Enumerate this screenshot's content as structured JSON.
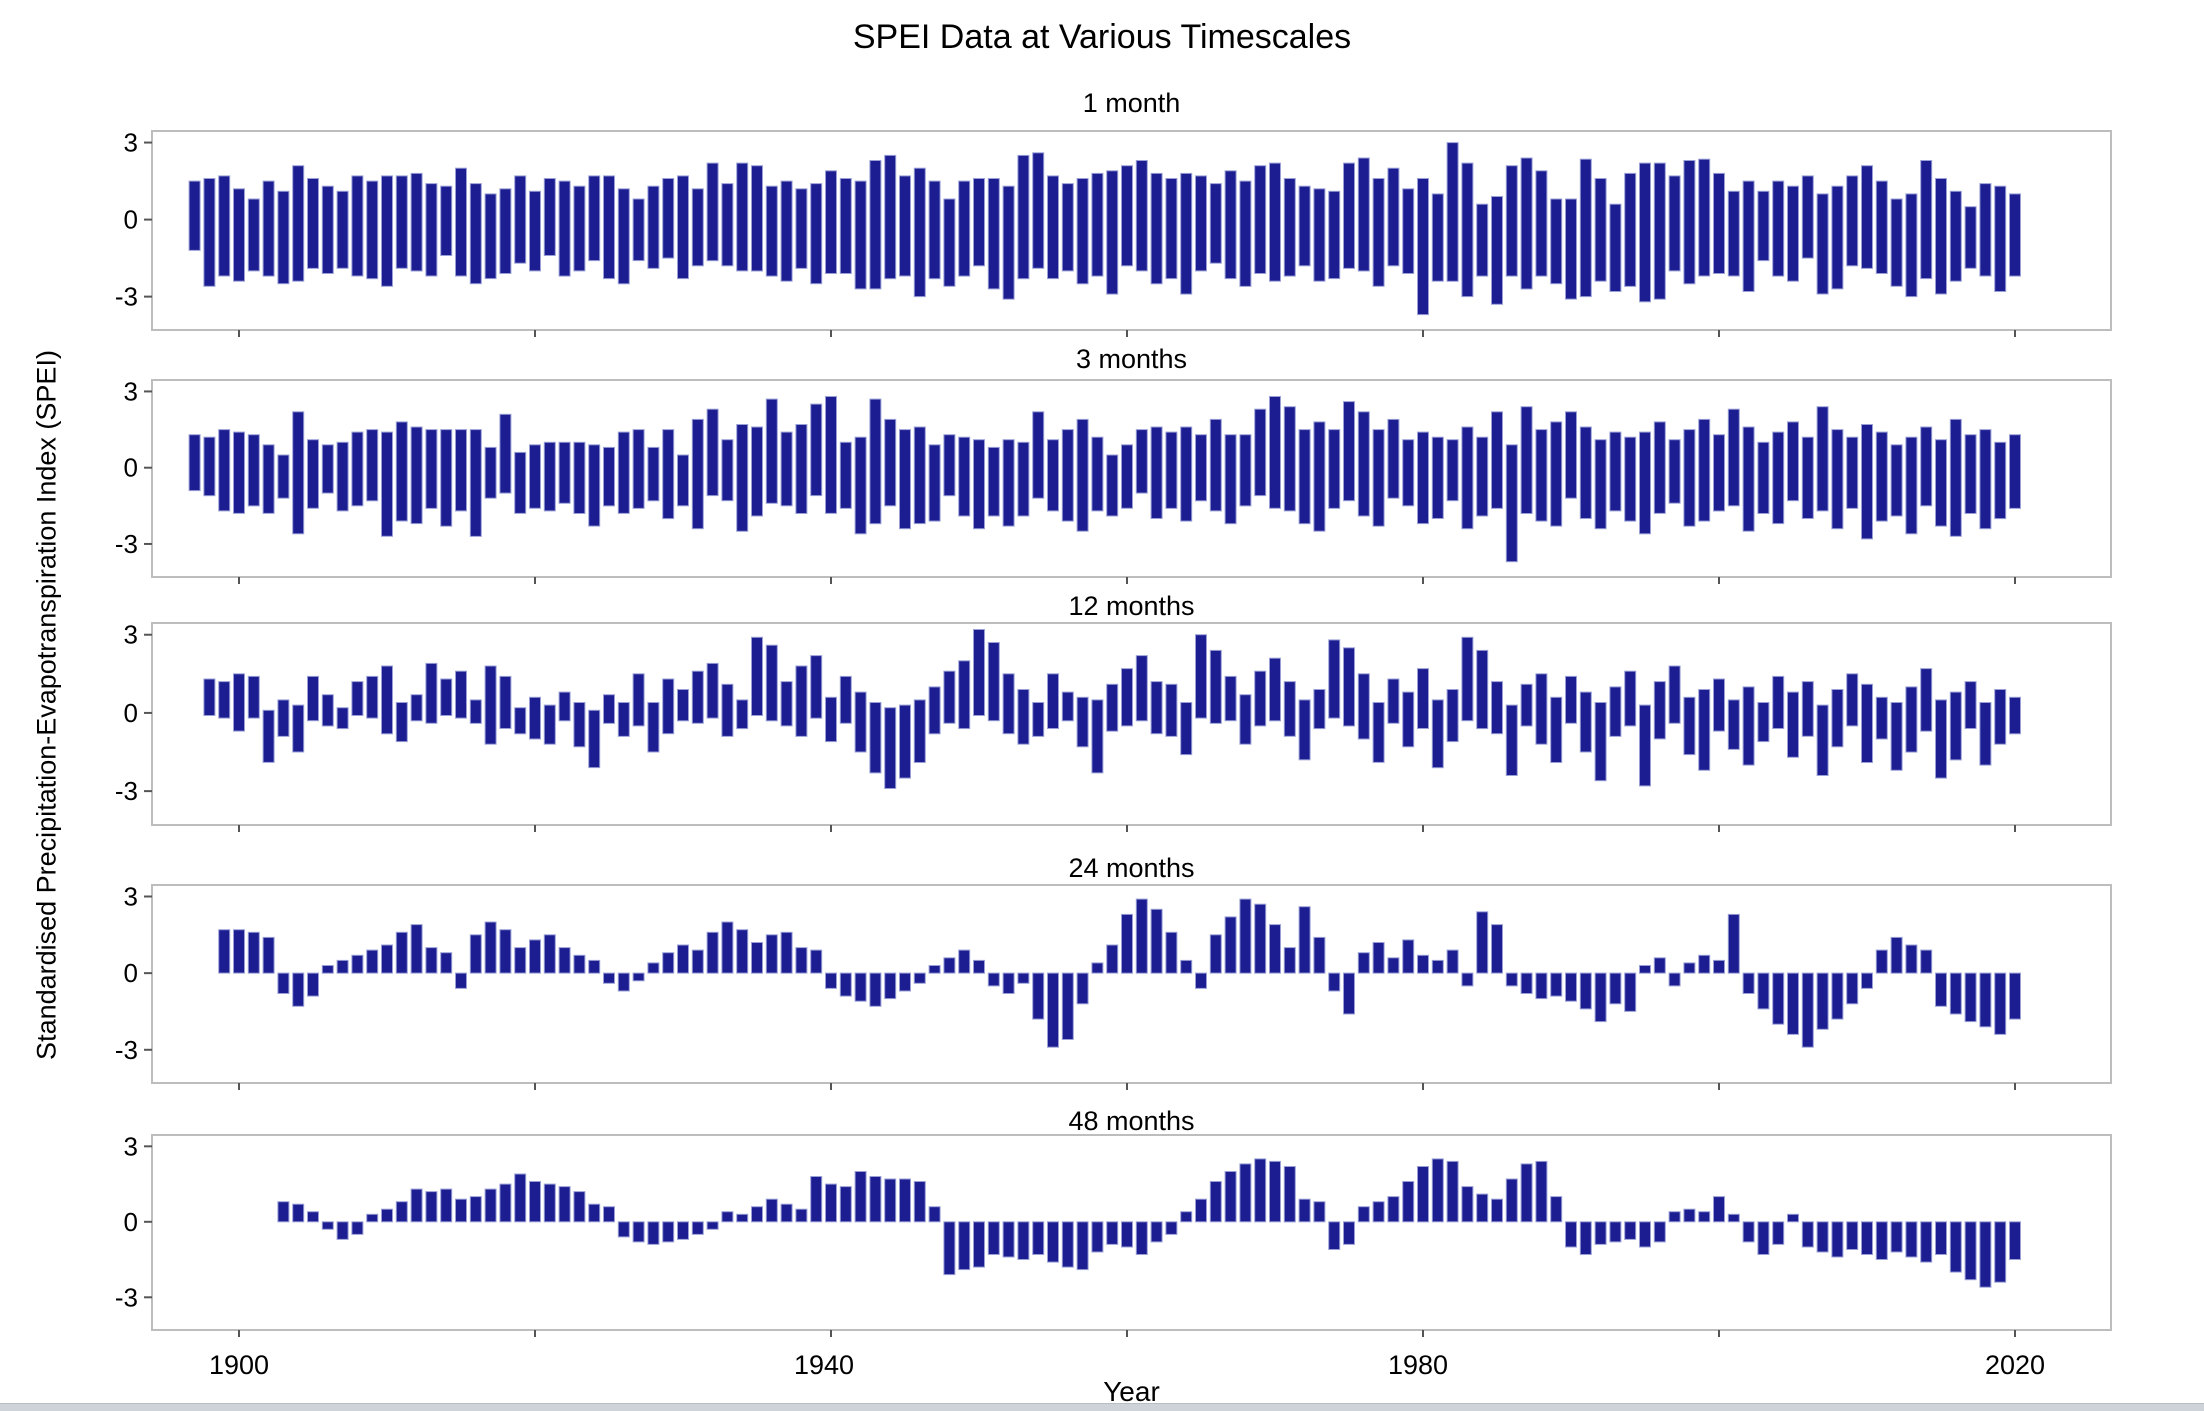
{
  "figure": {
    "title": "SPEI Data at Various Timescales",
    "xlabel": "Year",
    "ylabel": "Standardised Precipitation-Evapotranspiration Index (SPEI)"
  },
  "axes": {
    "y_tick_labels": [
      "3",
      "0",
      "-3"
    ],
    "y_tick_values": [
      3,
      0,
      -3
    ],
    "x_tick_labels": [
      "1900",
      "1940",
      "1980",
      "2020"
    ],
    "x_tick_label_years": [
      1900,
      1940,
      1980,
      2020
    ],
    "x_minor_tick_years": [
      1900,
      1920,
      1940,
      1960,
      1980,
      2000,
      2020
    ],
    "ylim": [
      -4.3,
      3.45
    ],
    "xlim": [
      1894,
      2026.5
    ],
    "grid": false,
    "legend": "none"
  },
  "style": {
    "bar_color": "#1d1d92",
    "bar_edge": "#9aa0d6",
    "frame_color": "#bdbdbd",
    "tick_color": "#555555",
    "text_color": "#000000",
    "bottom_strip": "#cdd3d9"
  },
  "chart_data": [
    {
      "type": "bar",
      "title": "1 month",
      "start_year": 1897,
      "note": "each column spans the year's monthly max (upper) to min (lower) SPEI",
      "upper": [
        1.5,
        1.6,
        1.7,
        1.2,
        0.8,
        1.5,
        1.1,
        2.1,
        1.6,
        1.3,
        1.1,
        1.7,
        1.5,
        1.7,
        1.7,
        1.8,
        1.4,
        1.3,
        2.0,
        1.4,
        1.0,
        1.2,
        1.7,
        1.1,
        1.6,
        1.5,
        1.3,
        1.7,
        1.7,
        1.2,
        0.8,
        1.3,
        1.6,
        1.7,
        1.2,
        2.2,
        1.4,
        2.2,
        2.1,
        1.3,
        1.5,
        1.2,
        1.4,
        1.9,
        1.6,
        1.5,
        2.3,
        2.5,
        1.7,
        2.0,
        1.5,
        0.8,
        1.5,
        1.6,
        1.6,
        1.3,
        2.5,
        2.6,
        1.7,
        1.4,
        1.6,
        1.8,
        1.9,
        2.1,
        2.3,
        1.8,
        1.6,
        1.8,
        1.7,
        1.4,
        1.9,
        1.5,
        2.1,
        2.2,
        1.6,
        1.3,
        1.2,
        1.1,
        2.2,
        2.4,
        1.6,
        2.0,
        1.2,
        1.6,
        1.0,
        3.0,
        2.2,
        0.6,
        0.9,
        2.1,
        2.4,
        1.9,
        0.8,
        0.8,
        2.35,
        1.6,
        0.6,
        1.8,
        2.2,
        2.2,
        1.7,
        2.3,
        2.35,
        1.8,
        1.1,
        1.5,
        1.1,
        1.5,
        1.3,
        1.7,
        1.0,
        1.3,
        1.7,
        2.1,
        1.5,
        0.8,
        1.0,
        2.3,
        1.6,
        1.1,
        0.5,
        1.4,
        1.3,
        1.0
      ],
      "lower": [
        -1.2,
        -2.6,
        -2.2,
        -2.4,
        -2.0,
        -2.2,
        -2.5,
        -2.4,
        -1.9,
        -2.1,
        -1.9,
        -2.2,
        -2.3,
        -2.6,
        -1.9,
        -2.0,
        -2.2,
        -1.4,
        -2.2,
        -2.5,
        -2.3,
        -2.1,
        -1.7,
        -2.0,
        -1.4,
        -2.2,
        -2.0,
        -1.6,
        -2.3,
        -2.5,
        -1.6,
        -1.9,
        -1.5,
        -2.3,
        -1.8,
        -1.6,
        -1.8,
        -2.0,
        -2.0,
        -2.2,
        -2.4,
        -1.9,
        -2.5,
        -2.1,
        -2.1,
        -2.7,
        -2.7,
        -2.3,
        -2.2,
        -3.0,
        -2.3,
        -2.6,
        -2.2,
        -1.8,
        -2.7,
        -3.1,
        -2.3,
        -1.9,
        -2.3,
        -2.0,
        -2.5,
        -2.2,
        -2.9,
        -1.8,
        -2.0,
        -2.5,
        -2.3,
        -2.9,
        -2.0,
        -1.7,
        -2.3,
        -2.6,
        -2.1,
        -2.4,
        -2.2,
        -1.8,
        -2.4,
        -2.3,
        -1.9,
        -2.0,
        -2.6,
        -1.8,
        -2.1,
        -3.7,
        -2.4,
        -2.4,
        -3.0,
        -2.2,
        -3.3,
        -2.2,
        -2.7,
        -2.2,
        -2.5,
        -3.1,
        -3.0,
        -2.4,
        -2.8,
        -2.6,
        -3.2,
        -3.1,
        -2.0,
        -2.5,
        -2.2,
        -2.1,
        -2.2,
        -2.8,
        -1.6,
        -2.2,
        -2.4,
        -1.5,
        -2.9,
        -2.7,
        -1.8,
        -1.9,
        -2.1,
        -2.6,
        -3.0,
        -2.3,
        -2.9,
        -2.4,
        -1.9,
        -2.2,
        -2.8,
        -2.2
      ]
    },
    {
      "type": "bar",
      "title": "3 months",
      "start_year": 1897,
      "upper": [
        1.3,
        1.2,
        1.5,
        1.4,
        1.3,
        0.9,
        0.5,
        2.2,
        1.1,
        0.9,
        1.0,
        1.4,
        1.5,
        1.4,
        1.8,
        1.6,
        1.5,
        1.5,
        1.5,
        1.5,
        0.8,
        2.1,
        0.6,
        0.9,
        1.0,
        1.0,
        1.0,
        0.9,
        0.8,
        1.4,
        1.5,
        0.8,
        1.5,
        0.5,
        1.9,
        2.3,
        1.1,
        1.7,
        1.6,
        2.7,
        1.4,
        1.7,
        2.5,
        2.8,
        1.0,
        1.2,
        2.7,
        1.9,
        1.5,
        1.6,
        0.9,
        1.3,
        1.2,
        1.1,
        0.8,
        1.1,
        1.0,
        2.2,
        1.1,
        1.5,
        1.9,
        1.2,
        0.5,
        0.9,
        1.5,
        1.6,
        1.4,
        1.6,
        1.3,
        1.9,
        1.3,
        1.3,
        2.3,
        2.8,
        2.4,
        1.5,
        1.8,
        1.5,
        2.6,
        2.2,
        1.5,
        1.9,
        1.1,
        1.4,
        1.2,
        1.1,
        1.6,
        1.2,
        2.2,
        0.9,
        2.4,
        1.5,
        1.8,
        2.2,
        1.6,
        1.1,
        1.4,
        1.2,
        1.4,
        1.8,
        1.1,
        1.5,
        1.9,
        1.3,
        2.3,
        1.6,
        1.0,
        1.4,
        1.8,
        1.2,
        2.4,
        1.5,
        1.2,
        1.7,
        1.4,
        0.9,
        1.2,
        1.6,
        1.1,
        1.9,
        1.3,
        1.5,
        1.0,
        1.3
      ],
      "lower": [
        -0.9,
        -1.1,
        -1.7,
        -1.8,
        -1.5,
        -1.8,
        -1.2,
        -2.6,
        -1.6,
        -1.0,
        -1.7,
        -1.5,
        -1.3,
        -2.7,
        -2.1,
        -2.2,
        -1.6,
        -2.3,
        -1.7,
        -2.7,
        -1.2,
        -1.0,
        -1.8,
        -1.6,
        -1.7,
        -1.4,
        -1.8,
        -2.3,
        -1.5,
        -1.8,
        -1.6,
        -1.3,
        -2.0,
        -1.5,
        -2.4,
        -1.1,
        -1.3,
        -2.5,
        -1.9,
        -1.4,
        -1.5,
        -1.8,
        -1.1,
        -1.8,
        -1.6,
        -2.6,
        -2.2,
        -1.5,
        -2.4,
        -2.2,
        -2.1,
        -1.1,
        -1.9,
        -2.4,
        -1.9,
        -2.3,
        -1.9,
        -1.2,
        -1.7,
        -2.1,
        -2.5,
        -1.7,
        -1.9,
        -1.6,
        -1.0,
        -2.0,
        -1.6,
        -2.1,
        -1.3,
        -1.7,
        -2.2,
        -1.5,
        -1.1,
        -1.6,
        -1.7,
        -2.2,
        -2.5,
        -1.6,
        -1.3,
        -1.9,
        -2.3,
        -1.2,
        -1.5,
        -2.2,
        -2.0,
        -1.3,
        -2.4,
        -1.9,
        -1.6,
        -3.7,
        -1.8,
        -2.1,
        -2.3,
        -1.2,
        -2.0,
        -2.4,
        -1.7,
        -2.1,
        -2.6,
        -1.8,
        -1.4,
        -2.3,
        -2.1,
        -1.7,
        -1.5,
        -2.5,
        -1.8,
        -2.2,
        -1.3,
        -2.0,
        -1.7,
        -2.4,
        -1.6,
        -2.8,
        -2.1,
        -1.9,
        -2.6,
        -1.5,
        -2.3,
        -2.7,
        -1.8,
        -2.4,
        -2.0,
        -1.6
      ]
    },
    {
      "type": "bar",
      "title": "12 months",
      "start_year": 1898,
      "upper": [
        1.3,
        1.2,
        1.5,
        1.4,
        0.1,
        0.5,
        0.3,
        1.4,
        0.7,
        0.2,
        1.2,
        1.4,
        1.8,
        0.4,
        0.7,
        1.9,
        1.3,
        1.6,
        0.5,
        1.8,
        1.4,
        0.2,
        0.6,
        0.3,
        0.8,
        0.4,
        0.1,
        0.7,
        0.4,
        1.5,
        0.4,
        1.3,
        0.9,
        1.6,
        1.9,
        1.1,
        0.5,
        2.9,
        2.6,
        1.2,
        1.8,
        2.2,
        0.6,
        1.4,
        0.8,
        0.4,
        0.2,
        0.3,
        0.5,
        1.0,
        1.6,
        2.0,
        3.2,
        2.7,
        1.5,
        0.9,
        0.4,
        1.5,
        0.8,
        0.6,
        0.5,
        1.1,
        1.7,
        2.2,
        1.2,
        1.1,
        0.4,
        3.0,
        2.4,
        1.4,
        0.7,
        1.6,
        2.1,
        1.2,
        0.5,
        0.9,
        2.8,
        2.5,
        1.5,
        0.4,
        1.3,
        0.8,
        1.7,
        0.5,
        0.9,
        2.9,
        2.4,
        1.2,
        0.3,
        1.1,
        1.5,
        0.6,
        1.4,
        0.8,
        0.4,
        1.0,
        1.6,
        0.3,
        1.2,
        1.8,
        0.6,
        0.9,
        1.3,
        0.5,
        1.0,
        0.4,
        1.4,
        0.8,
        1.2,
        0.3,
        0.9,
        1.5,
        1.1,
        0.6,
        0.4,
        1.0,
        1.7,
        0.5,
        0.8,
        1.2,
        0.4,
        0.9,
        0.6
      ],
      "lower": [
        -0.1,
        -0.2,
        -0.7,
        -0.2,
        -1.9,
        -0.9,
        -1.5,
        -0.3,
        -0.5,
        -0.6,
        -0.1,
        -0.2,
        -0.8,
        -1.1,
        -0.3,
        -0.4,
        -0.1,
        -0.2,
        -0.4,
        -1.2,
        -0.6,
        -0.8,
        -1.0,
        -1.2,
        -0.3,
        -1.3,
        -2.1,
        -0.4,
        -0.9,
        -0.5,
        -1.5,
        -0.8,
        -0.3,
        -0.4,
        -0.2,
        -0.9,
        -0.6,
        -0.1,
        -0.3,
        -0.5,
        -0.9,
        -0.2,
        -1.1,
        -0.4,
        -1.5,
        -2.3,
        -2.9,
        -2.5,
        -1.9,
        -0.8,
        -0.4,
        -0.6,
        -0.1,
        -0.3,
        -0.8,
        -1.2,
        -0.9,
        -0.6,
        -0.3,
        -1.3,
        -2.3,
        -0.7,
        -0.5,
        -0.3,
        -0.8,
        -0.9,
        -1.6,
        -0.2,
        -0.4,
        -0.3,
        -1.2,
        -0.5,
        -0.3,
        -0.9,
        -1.8,
        -0.6,
        -0.2,
        -0.5,
        -1.0,
        -1.9,
        -0.4,
        -1.3,
        -0.6,
        -2.1,
        -1.1,
        -0.3,
        -0.6,
        -0.8,
        -2.4,
        -0.5,
        -1.2,
        -1.9,
        -0.4,
        -1.5,
        -2.6,
        -0.9,
        -0.5,
        -2.8,
        -1.0,
        -0.4,
        -1.6,
        -2.2,
        -0.7,
        -1.4,
        -2.0,
        -1.1,
        -0.6,
        -1.7,
        -0.9,
        -2.4,
        -1.3,
        -0.5,
        -1.9,
        -1.0,
        -2.2,
        -1.5,
        -0.7,
        -2.5,
        -1.8,
        -0.6,
        -2.0,
        -1.2,
        -0.8
      ]
    },
    {
      "type": "bar",
      "title": "24 months",
      "start_year": 1899,
      "values": [
        1.7,
        1.7,
        1.6,
        1.4,
        -0.8,
        -1.3,
        -0.9,
        0.3,
        0.5,
        0.7,
        0.9,
        1.1,
        1.6,
        1.9,
        1.0,
        0.8,
        -0.6,
        1.5,
        2.0,
        1.7,
        1.0,
        1.3,
        1.5,
        1.0,
        0.7,
        0.5,
        -0.4,
        -0.7,
        -0.3,
        0.4,
        0.8,
        1.1,
        0.9,
        1.6,
        2.0,
        1.7,
        1.2,
        1.5,
        1.6,
        1.0,
        0.9,
        -0.6,
        -0.9,
        -1.1,
        -1.3,
        -1.0,
        -0.7,
        -0.4,
        0.3,
        0.6,
        0.9,
        0.5,
        -0.5,
        -0.8,
        -0.4,
        -1.8,
        -2.9,
        -2.6,
        -1.2,
        0.4,
        1.1,
        2.3,
        2.9,
        2.5,
        1.6,
        0.5,
        -0.6,
        1.5,
        2.2,
        2.9,
        2.7,
        1.9,
        1.0,
        2.6,
        1.4,
        -0.7,
        -1.6,
        0.8,
        1.2,
        0.6,
        1.3,
        0.7,
        0.5,
        0.9,
        -0.5,
        2.4,
        1.9,
        -0.5,
        -0.8,
        -1.0,
        -0.9,
        -1.1,
        -1.4,
        -1.9,
        -1.2,
        -1.5,
        0.3,
        0.6,
        -0.5,
        0.4,
        0.7,
        0.5,
        2.3,
        -0.8,
        -1.4,
        -2.0,
        -2.4,
        -2.9,
        -2.2,
        -1.8,
        -1.2,
        -0.6,
        0.9,
        1.4,
        1.1,
        0.9,
        -1.3,
        -1.6,
        -1.9,
        -2.1,
        -2.4,
        -1.8
      ]
    },
    {
      "type": "bar",
      "title": "48 months",
      "start_year": 1903,
      "values": [
        0.8,
        0.7,
        0.4,
        -0.3,
        -0.7,
        -0.5,
        0.3,
        0.5,
        0.8,
        1.3,
        1.2,
        1.3,
        0.9,
        1.0,
        1.3,
        1.5,
        1.9,
        1.6,
        1.5,
        1.4,
        1.2,
        0.7,
        0.6,
        -0.6,
        -0.8,
        -0.9,
        -0.8,
        -0.7,
        -0.5,
        -0.3,
        0.4,
        0.3,
        0.6,
        0.9,
        0.7,
        0.5,
        1.8,
        1.5,
        1.4,
        2.0,
        1.8,
        1.7,
        1.7,
        1.6,
        0.6,
        -2.1,
        -1.9,
        -1.8,
        -1.3,
        -1.4,
        -1.5,
        -1.3,
        -1.6,
        -1.8,
        -1.9,
        -1.2,
        -0.9,
        -1.0,
        -1.3,
        -0.8,
        -0.5,
        0.4,
        0.9,
        1.6,
        2.0,
        2.3,
        2.5,
        2.4,
        2.2,
        0.9,
        0.8,
        -1.1,
        -0.9,
        0.6,
        0.8,
        1.0,
        1.6,
        2.2,
        2.5,
        2.4,
        1.4,
        1.1,
        0.9,
        1.7,
        2.3,
        2.4,
        1.0,
        -1.0,
        -1.3,
        -0.9,
        -0.8,
        -0.7,
        -1.0,
        -0.8,
        0.4,
        0.5,
        0.4,
        1.0,
        0.3,
        -0.8,
        -1.3,
        -0.9,
        0.3,
        -1.0,
        -1.2,
        -1.4,
        -1.1,
        -1.3,
        -1.5,
        -1.2,
        -1.4,
        -1.6,
        -1.3,
        -2.0,
        -2.3,
        -2.6,
        -2.4,
        -1.5
      ]
    }
  ]
}
